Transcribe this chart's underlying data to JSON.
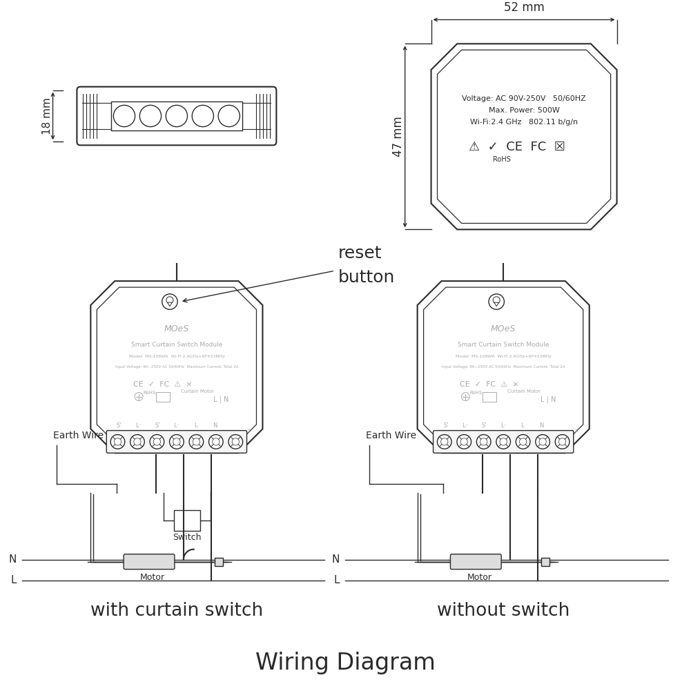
{
  "bg_color": "#ffffff",
  "line_color": "#2a2a2a",
  "gray_color": "#aaaaaa",
  "light_gray": "#cccccc",
  "title": "Wiring Diagram",
  "title_fontsize": 24,
  "subtitle_left": "with curtain switch",
  "subtitle_right": "without switch",
  "subtitle_fontsize": 19,
  "dim_52mm": "52 mm",
  "dim_47mm": "47 mm",
  "dim_18mm": "18 mm",
  "spec_line1": "Voltage: AC 90V-250V   50/60HZ",
  "spec_line2": "Max. Power: 500W",
  "spec_line3": "Wi-Fi:2.4 GHz   802.11 b/g/n",
  "reset_label_line1": "reset",
  "reset_label_line2": "button",
  "earth_wire": "Earth Wire",
  "switch_label": "Switch",
  "motor_label": "Motor",
  "N_label": "N",
  "L_label": "L"
}
